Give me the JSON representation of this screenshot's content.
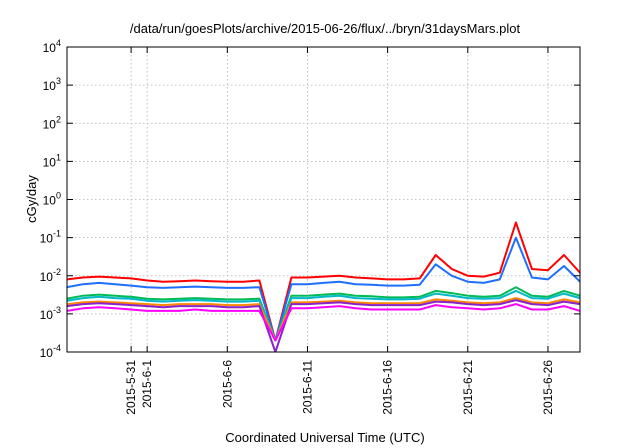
{
  "chart_data": {
    "type": "line",
    "title": "/data/run/goesPlots/archive/2015-06-26/flux/../bryn/31daysMars.plot",
    "xlabel": "Coordinated Universal Time (UTC)",
    "ylabel": "cGy/day",
    "y_scale": "log",
    "ylim": [
      0.0001,
      10000
    ],
    "y_ticks": [
      {
        "base": "10",
        "exp": "-4",
        "value": 0.0001
      },
      {
        "base": "10",
        "exp": "-3",
        "value": 0.001
      },
      {
        "base": "10",
        "exp": "-2",
        "value": 0.01
      },
      {
        "base": "10",
        "exp": "-1",
        "value": 0.1
      },
      {
        "base": "10",
        "exp": "0",
        "value": 1
      },
      {
        "base": "10",
        "exp": "1",
        "value": 10
      },
      {
        "base": "10",
        "exp": "2",
        "value": 100
      },
      {
        "base": "10",
        "exp": "3",
        "value": 1000
      },
      {
        "base": "10",
        "exp": "4",
        "value": 10000
      }
    ],
    "xlim": [
      "2015-05-27",
      "2015-06-28"
    ],
    "x_ticks": [
      {
        "label": "2015-5-31",
        "date": "2015-05-31"
      },
      {
        "label": "2015-6-1",
        "date": "2015-06-01"
      },
      {
        "label": "2015-6-6",
        "date": "2015-06-06"
      },
      {
        "label": "2015-6-11",
        "date": "2015-06-11"
      },
      {
        "label": "2015-6-16",
        "date": "2015-06-16"
      },
      {
        "label": "2015-6-21",
        "date": "2015-06-21"
      },
      {
        "label": "2015-6-26",
        "date": "2015-06-26"
      }
    ],
    "grid": true,
    "legend": "none",
    "x": [
      "2015-05-27",
      "2015-05-28",
      "2015-05-29",
      "2015-05-30",
      "2015-05-31",
      "2015-06-01",
      "2015-06-02",
      "2015-06-03",
      "2015-06-04",
      "2015-06-05",
      "2015-06-06",
      "2015-06-07",
      "2015-06-08",
      "2015-06-09",
      "2015-06-10",
      "2015-06-11",
      "2015-06-12",
      "2015-06-13",
      "2015-06-14",
      "2015-06-15",
      "2015-06-16",
      "2015-06-17",
      "2015-06-18",
      "2015-06-19",
      "2015-06-20",
      "2015-06-21",
      "2015-06-22",
      "2015-06-23",
      "2015-06-24",
      "2015-06-25",
      "2015-06-26",
      "2015-06-27",
      "2015-06-28"
    ],
    "series": [
      {
        "color": "#ff0000",
        "values": [
          0.008,
          0.009,
          0.0095,
          0.009,
          0.0085,
          0.0075,
          0.007,
          0.0072,
          0.0075,
          0.0072,
          0.007,
          0.007,
          0.0075,
          0.0002,
          0.009,
          0.009,
          0.0095,
          0.01,
          0.009,
          0.0085,
          0.008,
          0.008,
          0.0085,
          0.035,
          0.015,
          0.01,
          0.0095,
          0.012,
          0.25,
          0.015,
          0.014,
          0.035,
          0.012
        ]
      },
      {
        "color": "#1e6fff",
        "values": [
          0.005,
          0.006,
          0.0065,
          0.006,
          0.0055,
          0.005,
          0.0048,
          0.005,
          0.0052,
          0.005,
          0.0048,
          0.0048,
          0.005,
          0.0002,
          0.006,
          0.006,
          0.0065,
          0.007,
          0.006,
          0.0058,
          0.0055,
          0.0055,
          0.0058,
          0.02,
          0.01,
          0.007,
          0.0065,
          0.008,
          0.1,
          0.009,
          0.008,
          0.018,
          0.007
        ]
      },
      {
        "color": "#00bb55",
        "values": [
          0.0025,
          0.003,
          0.0032,
          0.003,
          0.0028,
          0.0025,
          0.0024,
          0.0025,
          0.0026,
          0.0025,
          0.0024,
          0.0024,
          0.0025,
          0.0002,
          0.003,
          0.003,
          0.0032,
          0.0034,
          0.003,
          0.0029,
          0.0027,
          0.0027,
          0.0028,
          0.004,
          0.0035,
          0.003,
          0.0028,
          0.003,
          0.005,
          0.003,
          0.0028,
          0.004,
          0.003
        ]
      },
      {
        "color": "#00b8c8",
        "values": [
          0.0022,
          0.0026,
          0.0028,
          0.0026,
          0.0025,
          0.0022,
          0.0021,
          0.0022,
          0.0023,
          0.0022,
          0.0021,
          0.0021,
          0.0022,
          0.0002,
          0.0026,
          0.0026,
          0.0028,
          0.003,
          0.0026,
          0.0025,
          0.0024,
          0.0024,
          0.0025,
          0.0034,
          0.003,
          0.0026,
          0.0025,
          0.0026,
          0.004,
          0.0026,
          0.0025,
          0.0034,
          0.0026
        ]
      },
      {
        "color": "#ff8800",
        "values": [
          0.0018,
          0.002,
          0.0021,
          0.002,
          0.0019,
          0.0018,
          0.0017,
          0.0018,
          0.0018,
          0.0018,
          0.0017,
          0.0017,
          0.0018,
          0.0002,
          0.002,
          0.002,
          0.0021,
          0.0022,
          0.002,
          0.0019,
          0.0019,
          0.0019,
          0.0019,
          0.0024,
          0.0022,
          0.002,
          0.0019,
          0.002,
          0.0026,
          0.002,
          0.0019,
          0.0024,
          0.002
        ]
      },
      {
        "color": "#8822cc",
        "values": [
          0.0016,
          0.0018,
          0.0019,
          0.0018,
          0.0017,
          0.0016,
          0.0015,
          0.0016,
          0.0016,
          0.0016,
          0.0015,
          0.0015,
          0.0016,
          0.0001,
          0.0018,
          0.0018,
          0.0019,
          0.002,
          0.0018,
          0.0017,
          0.0017,
          0.0017,
          0.0017,
          0.0021,
          0.002,
          0.0018,
          0.0017,
          0.0018,
          0.0023,
          0.0018,
          0.0017,
          0.0021,
          0.0018
        ]
      },
      {
        "color": "#ff00ff",
        "values": [
          0.0012,
          0.0014,
          0.0015,
          0.0014,
          0.0013,
          0.0012,
          0.0012,
          0.0012,
          0.0013,
          0.0012,
          0.0012,
          0.0012,
          0.0012,
          0.0002,
          0.0014,
          0.0014,
          0.0015,
          0.0016,
          0.0014,
          0.0013,
          0.0013,
          0.0013,
          0.0013,
          0.0017,
          0.0015,
          0.0014,
          0.0013,
          0.0014,
          0.0018,
          0.0013,
          0.0013,
          0.0016,
          0.0012
        ]
      }
    ]
  }
}
